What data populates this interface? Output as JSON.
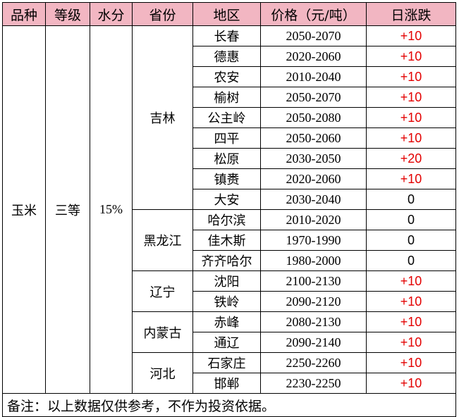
{
  "headers": [
    "品种",
    "等级",
    "水分",
    "省份",
    "地区",
    "价格（元/吨）",
    "日涨跌"
  ],
  "product": "玉米",
  "grade": "三等",
  "moisture": "15%",
  "provinces": [
    {
      "name": "吉林",
      "rows": [
        {
          "region": "长春",
          "price": "2050-2070",
          "change": "+10"
        },
        {
          "region": "德惠",
          "price": "2020-2060",
          "change": "+10"
        },
        {
          "region": "农安",
          "price": "2010-2040",
          "change": "+10"
        },
        {
          "region": "榆树",
          "price": "2050-2070",
          "change": "+10"
        },
        {
          "region": "公主岭",
          "price": "2050-2080",
          "change": "+10"
        },
        {
          "region": "四平",
          "price": "2050-2060",
          "change": "+10"
        },
        {
          "region": "松原",
          "price": "2030-2050",
          "change": "+20"
        },
        {
          "region": "镇赉",
          "price": "2020-2060",
          "change": "+10"
        },
        {
          "region": "大安",
          "price": "2030-2040",
          "change": "0"
        }
      ]
    },
    {
      "name": "黑龙江",
      "rows": [
        {
          "region": "哈尔滨",
          "price": "2010-2020",
          "change": "0"
        },
        {
          "region": "佳木斯",
          "price": "1970-1990",
          "change": "0"
        },
        {
          "region": "齐齐哈尔",
          "price": "1980-2000",
          "change": "0"
        }
      ]
    },
    {
      "name": "辽宁",
      "rows": [
        {
          "region": "沈阳",
          "price": "2100-2130",
          "change": "+10"
        },
        {
          "region": "铁岭",
          "price": "2090-2120",
          "change": "+10"
        }
      ]
    },
    {
      "name": "内蒙古",
      "rows": [
        {
          "region": "赤峰",
          "price": "2080-2130",
          "change": "+10"
        },
        {
          "region": "通辽",
          "price": "2090-2140",
          "change": "+10"
        }
      ]
    },
    {
      "name": "河北",
      "rows": [
        {
          "region": "石家庄",
          "price": "2250-2260",
          "change": "+10"
        },
        {
          "region": "邯郸",
          "price": "2230-2250",
          "change": "+10"
        }
      ]
    }
  ],
  "note": "备注：以上数据仅供参考，不作为投资依据。",
  "colors": {
    "header_bg": "#f2b6c2",
    "up": "#e30000",
    "flat": "#000000"
  }
}
